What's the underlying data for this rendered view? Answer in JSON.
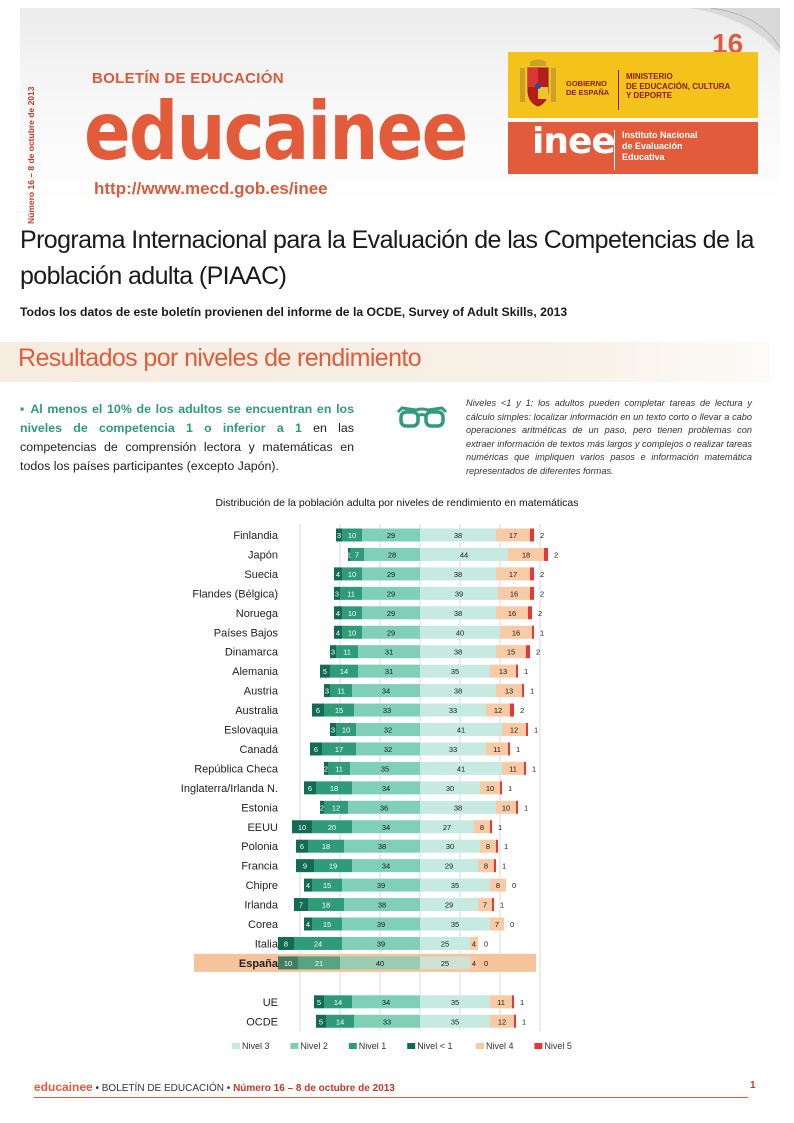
{
  "header": {
    "issue_vertical": "Número 16 – 8 de octubre de 2013",
    "boletin": "BOLETÍN DE EDUCACIÓN",
    "brand": "educainee",
    "url": "http://www.mecd.gob.es/inee",
    "issue_number": "16",
    "gobierno": [
      "GOBIERNO",
      "DE ESPAÑA"
    ],
    "ministerio": [
      "MINISTERIO",
      "DE EDUCACIÓN, CULTURA",
      "Y DEPORTE"
    ],
    "inee_logo": "inee",
    "inee_text": [
      "Instituto Nacional",
      "de Evaluación",
      "Educativa"
    ]
  },
  "title": "Programa Internacional para la Evaluación de las Competencias de la población adulta (PIAAC)",
  "subtitle": "Todos los datos de este boletín provienen del informe de la OCDE, Survey of Adult Skills, 2013",
  "section_title": "Resultados por niveles de rendimiento",
  "bullet": {
    "marker": "▪",
    "bold_text": "Al menos el 10% de los adultos se encuentran en los niveles de competencia 1 o inferior a 1",
    "rest_text": " en las competencias de comprensión lectora y matemáticas en todos los países participantes (excepto Japón)."
  },
  "note": "Niveles <1 y 1: los adultos pueden completar tareas de lectura y cálculo simples: localizar información en un texto corto o llevar a cabo operaciones aritméticas de un paso, pero tienen problemas con extraer información de textos más largos y complejos o realizar tareas numéricas que impliquen varios pasos e información matemática representados de diferentes formas.",
  "colors": {
    "accent": "#e25c3c",
    "nivel_lt1": "#136b55",
    "nivel1": "#2f9b7a",
    "nivel2": "#7fd0b6",
    "nivel3": "#c6eadf",
    "nivel4": "#f8caa6",
    "nivel5": "#e53935",
    "highlight": "#f7c39b"
  },
  "chart_data": {
    "type": "bar",
    "title": "Distribución de la población adulta por niveles de rendimiento en matemáticas",
    "stacking": "diverging",
    "highlight": "España",
    "legend_position": "bottom",
    "legend": [
      "Nivel 3",
      "Nivel 2",
      "Nivel 1",
      "Nivel < 1",
      "Nivel 4",
      "Nivel 5"
    ],
    "categories": [
      "Finlandia",
      "Japón",
      "Suecia",
      "Flandes (Bélgica)",
      "Noruega",
      "Países Bajos",
      "Dinamarca",
      "Alemania",
      "Austria",
      "Australia",
      "Eslovaquia",
      "Canadá",
      "República Checa",
      "Inglaterra/Irlanda N.",
      "Estonia",
      "EEUU",
      "Polonia",
      "Francia",
      "Chipre",
      "Irlanda",
      "Corea",
      "Italia",
      "España",
      "",
      "UE",
      "OCDE"
    ],
    "series": [
      {
        "name": "Nivel < 1",
        "values": [
          3,
          1,
          4,
          3,
          4,
          4,
          3,
          5,
          3,
          6,
          3,
          6,
          2,
          6,
          2,
          10,
          6,
          9,
          4,
          7,
          4,
          8,
          10,
          null,
          5,
          5
        ]
      },
      {
        "name": "Nivel 1",
        "values": [
          10,
          7,
          10,
          11,
          10,
          10,
          11,
          14,
          11,
          15,
          10,
          17,
          11,
          18,
          12,
          20,
          18,
          19,
          15,
          18,
          15,
          24,
          21,
          null,
          14,
          14
        ]
      },
      {
        "name": "Nivel 2",
        "values": [
          29,
          28,
          29,
          29,
          29,
          29,
          31,
          31,
          34,
          33,
          32,
          32,
          35,
          34,
          36,
          34,
          38,
          34,
          39,
          38,
          39,
          39,
          40,
          null,
          34,
          33
        ]
      },
      {
        "name": "Nivel 3",
        "values": [
          38,
          44,
          38,
          39,
          38,
          40,
          38,
          35,
          38,
          33,
          41,
          33,
          41,
          30,
          38,
          27,
          30,
          29,
          35,
          29,
          35,
          25,
          25,
          null,
          35,
          35
        ]
      },
      {
        "name": "Nivel 4",
        "values": [
          17,
          18,
          17,
          16,
          16,
          16,
          15,
          13,
          13,
          12,
          12,
          11,
          11,
          10,
          10,
          8,
          8,
          8,
          8,
          7,
          7,
          4,
          4,
          null,
          11,
          12
        ]
      },
      {
        "name": "Nivel 5",
        "values": [
          2,
          2,
          2,
          2,
          2,
          1,
          2,
          1,
          1,
          2,
          1,
          1,
          1,
          1,
          1,
          1,
          1,
          1,
          0,
          1,
          0,
          0,
          0,
          null,
          1,
          1
        ]
      }
    ]
  },
  "footer": {
    "brand": "educainee",
    "sep1": " • ",
    "boletin": "BOLETÍN DE EDUCACIÓN",
    "sep2": " • ",
    "issue": "Número 16 – 8 de octubre de 2013",
    "page": "1"
  }
}
